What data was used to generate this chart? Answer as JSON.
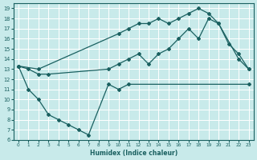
{
  "xlabel": "Humidex (Indice chaleur)",
  "bg_color": "#c8eaea",
  "grid_color": "#ffffff",
  "line_color": "#1a6060",
  "xlim": [
    -0.5,
    23.5
  ],
  "ylim": [
    6,
    19.5
  ],
  "xticks": [
    0,
    1,
    2,
    3,
    4,
    5,
    6,
    7,
    8,
    9,
    10,
    11,
    12,
    13,
    14,
    15,
    16,
    17,
    18,
    19,
    20,
    21,
    22,
    23
  ],
  "yticks": [
    6,
    7,
    8,
    9,
    10,
    11,
    12,
    13,
    14,
    15,
    16,
    17,
    18,
    19
  ],
  "line1_x": [
    0,
    1,
    2,
    3,
    4,
    5,
    6,
    7,
    9,
    10,
    11,
    23
  ],
  "line1_y": [
    13.3,
    11.0,
    10.0,
    8.5,
    8.0,
    7.5,
    7.0,
    6.5,
    11.5,
    11.0,
    11.5,
    11.5
  ],
  "line2_x": [
    0,
    2,
    10,
    11,
    12,
    13,
    14,
    15,
    16,
    17,
    18,
    19,
    20,
    22,
    23
  ],
  "line2_y": [
    13.3,
    13.0,
    16.5,
    17.0,
    17.5,
    17.5,
    18.0,
    17.5,
    18.0,
    18.5,
    19.0,
    18.5,
    17.5,
    14.0,
    13.0
  ],
  "line3_x": [
    0,
    1,
    2,
    3,
    9,
    10,
    11,
    12,
    13,
    14,
    15,
    16,
    17,
    18,
    19,
    20,
    21,
    22,
    23
  ],
  "line3_y": [
    13.3,
    13.0,
    12.5,
    12.5,
    13.0,
    13.5,
    14.0,
    14.5,
    13.5,
    14.5,
    15.0,
    16.0,
    17.0,
    16.0,
    18.0,
    17.5,
    15.5,
    14.5,
    13.0
  ]
}
